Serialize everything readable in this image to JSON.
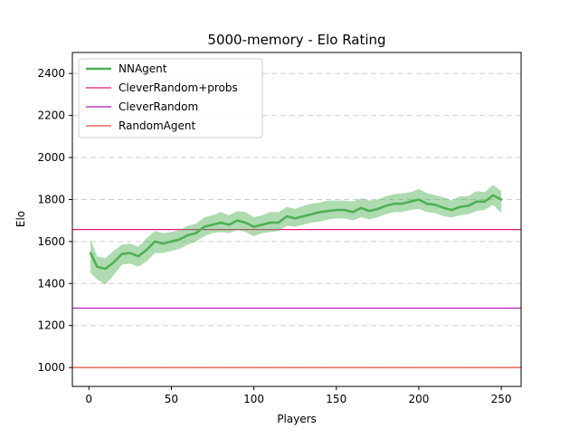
{
  "chart_data": {
    "type": "line",
    "title": "5000-memory - Elo Rating",
    "xlabel": "Players",
    "ylabel": "Elo",
    "xlim": [
      -10,
      262
    ],
    "ylim": [
      910,
      2500
    ],
    "xticks": [
      0,
      50,
      100,
      150,
      200,
      250
    ],
    "yticks": [
      1000,
      1200,
      1400,
      1600,
      1800,
      2000,
      2200,
      2400
    ],
    "grid": "horizontal-dashed",
    "legend_position": "top-left",
    "series": [
      {
        "name": "NNAgent",
        "color": "#4caf50",
        "x": [
          1,
          5,
          10,
          15,
          20,
          25,
          30,
          35,
          40,
          45,
          50,
          55,
          60,
          65,
          70,
          75,
          80,
          85,
          90,
          95,
          100,
          105,
          110,
          115,
          120,
          125,
          130,
          135,
          140,
          145,
          150,
          155,
          160,
          165,
          170,
          175,
          180,
          185,
          190,
          195,
          200,
          205,
          210,
          215,
          220,
          225,
          230,
          235,
          240,
          245,
          250
        ],
        "y": [
          1545,
          1480,
          1470,
          1500,
          1540,
          1545,
          1530,
          1560,
          1600,
          1590,
          1600,
          1610,
          1630,
          1640,
          1670,
          1680,
          1690,
          1680,
          1700,
          1690,
          1670,
          1680,
          1690,
          1690,
          1720,
          1710,
          1720,
          1730,
          1740,
          1745,
          1750,
          1750,
          1740,
          1760,
          1745,
          1755,
          1770,
          1780,
          1780,
          1790,
          1800,
          1780,
          1775,
          1760,
          1750,
          1765,
          1770,
          1790,
          1790,
          1820,
          1800
        ],
        "lower": [
          1450,
          1420,
          1395,
          1440,
          1490,
          1495,
          1480,
          1505,
          1545,
          1545,
          1555,
          1565,
          1585,
          1600,
          1625,
          1640,
          1645,
          1640,
          1655,
          1645,
          1625,
          1640,
          1645,
          1650,
          1675,
          1670,
          1680,
          1690,
          1695,
          1705,
          1710,
          1710,
          1700,
          1715,
          1705,
          1715,
          1730,
          1740,
          1740,
          1750,
          1755,
          1740,
          1735,
          1720,
          1715,
          1725,
          1730,
          1745,
          1750,
          1775,
          1735
        ],
        "upper": [
          1610,
          1530,
          1520,
          1555,
          1585,
          1590,
          1575,
          1615,
          1650,
          1640,
          1645,
          1655,
          1675,
          1685,
          1715,
          1725,
          1740,
          1725,
          1745,
          1740,
          1715,
          1725,
          1740,
          1740,
          1765,
          1755,
          1770,
          1780,
          1785,
          1795,
          1795,
          1795,
          1790,
          1805,
          1795,
          1800,
          1815,
          1825,
          1830,
          1835,
          1850,
          1830,
          1820,
          1810,
          1795,
          1815,
          1815,
          1840,
          1835,
          1870,
          1840
        ]
      },
      {
        "name": "CleverRandom+probs",
        "color": "#e8197a",
        "constant": 1657
      },
      {
        "name": "CleverRandom",
        "color": "#b516b5",
        "constant": 1283
      },
      {
        "name": "RandomAgent",
        "color": "#e84a3c",
        "constant": 1000
      }
    ]
  }
}
